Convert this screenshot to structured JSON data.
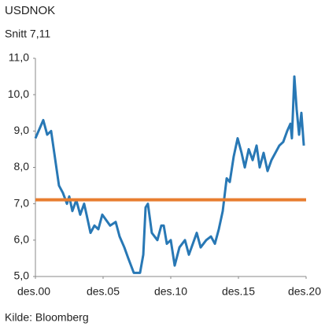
{
  "chart_data": {
    "type": "line",
    "title": "USDNOK",
    "subtitle": "Snitt 7,11",
    "source": "Kilde: Bloomberg",
    "reference_line": {
      "value": 7.11,
      "color": "#e87d2f"
    },
    "xlim": [
      2000.92,
      2020.92
    ],
    "xticks": [
      {
        "value": 2000.92,
        "label": "des.00"
      },
      {
        "value": 2005.92,
        "label": "des.05"
      },
      {
        "value": 2010.92,
        "label": "des.10"
      },
      {
        "value": 2015.92,
        "label": "des.15"
      },
      {
        "value": 2020.92,
        "label": "des.20"
      }
    ],
    "ylim": [
      5,
      11
    ],
    "yticks": [
      {
        "value": 5,
        "label": "5,0"
      },
      {
        "value": 6,
        "label": "6,0"
      },
      {
        "value": 7,
        "label": "7,0"
      },
      {
        "value": 8,
        "label": "8,0"
      },
      {
        "value": 9,
        "label": "9,0"
      },
      {
        "value": 10,
        "label": "10,0"
      },
      {
        "value": 11,
        "label": "11,0"
      }
    ],
    "x": [
      2000.92,
      2001.5,
      2001.79,
      2002.08,
      2002.66,
      2002.95,
      2003.25,
      2003.42,
      2003.65,
      2003.94,
      2004.23,
      2004.52,
      2004.7,
      2004.99,
      2005.28,
      2005.57,
      2005.86,
      2006.44,
      2006.85,
      2007.14,
      2007.49,
      2007.78,
      2008.19,
      2008.65,
      2008.89,
      2009.06,
      2009.23,
      2009.52,
      2009.93,
      2010.22,
      2010.4,
      2010.63,
      2010.92,
      2011.21,
      2011.56,
      2011.97,
      2012.26,
      2012.55,
      2012.84,
      2013.13,
      2013.54,
      2013.89,
      2014.18,
      2014.47,
      2014.76,
      2015.05,
      2015.28,
      2015.57,
      2015.86,
      2016.15,
      2016.39,
      2016.68,
      2016.97,
      2017.26,
      2017.49,
      2017.78,
      2018.07,
      2018.36,
      2018.65,
      2018.94,
      2019.23,
      2019.52,
      2019.76,
      2019.87,
      2020.05,
      2020.22,
      2020.4,
      2020.57,
      2020.75
    ],
    "series": [
      {
        "name": "USDNOK",
        "color": "#2878b5",
        "values": [
          8.8,
          9.3,
          8.9,
          9.0,
          7.5,
          7.3,
          7.0,
          7.2,
          6.8,
          7.1,
          6.7,
          7.0,
          6.7,
          6.2,
          6.4,
          6.3,
          6.7,
          6.4,
          6.5,
          6.1,
          5.8,
          5.5,
          5.1,
          5.1,
          5.6,
          6.9,
          7.0,
          6.2,
          6.0,
          6.4,
          6.4,
          5.9,
          6.0,
          5.3,
          5.8,
          6.0,
          5.6,
          5.9,
          6.2,
          5.8,
          6.0,
          6.1,
          5.9,
          6.3,
          6.8,
          7.7,
          7.6,
          8.3,
          8.8,
          8.4,
          8.0,
          8.5,
          8.2,
          8.6,
          8.0,
          8.4,
          7.9,
          8.2,
          8.4,
          8.6,
          8.7,
          9.0,
          9.2,
          8.8,
          10.5,
          9.6,
          8.9,
          9.5,
          8.6
        ]
      }
    ]
  }
}
